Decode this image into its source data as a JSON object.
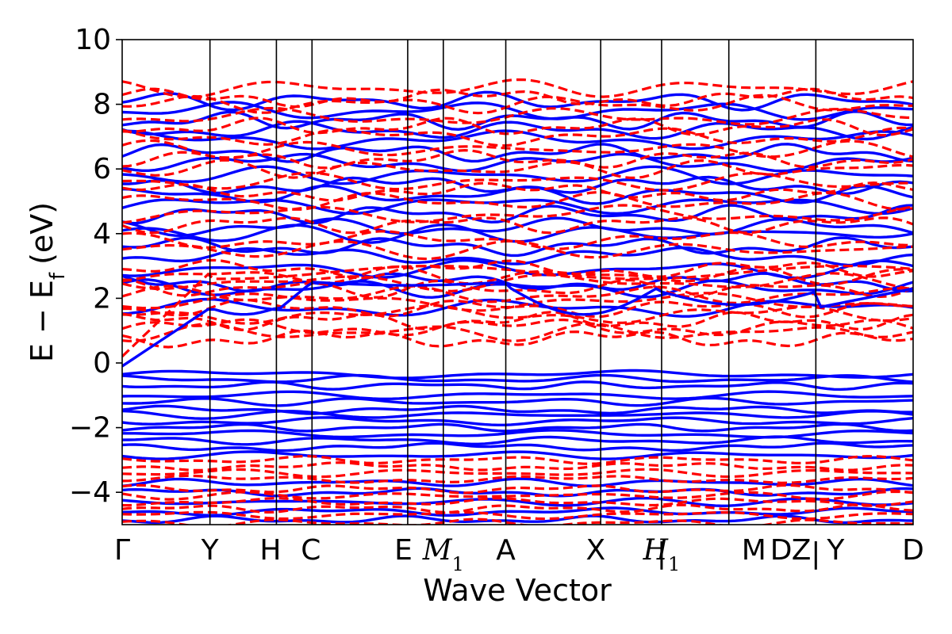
{
  "chart_data": {
    "type": "line",
    "title": "",
    "xlabel": "Wave Vector",
    "ylabel": "E − E",
    "ylabel_subscript": "f",
    "ylabel_unit": "(eV)",
    "ylim": [
      -5,
      10
    ],
    "yticks": [
      {
        "value": 10,
        "label": "10"
      },
      {
        "value": 8,
        "label": "8"
      },
      {
        "value": 6,
        "label": "6"
      },
      {
        "value": 4,
        "label": "4"
      },
      {
        "value": 2,
        "label": "2"
      },
      {
        "value": 0,
        "label": "0"
      },
      {
        "value": -2,
        "label": "−2"
      },
      {
        "value": -4,
        "label": "−4"
      }
    ],
    "xlim": [
      0,
      1
    ],
    "kpoints": [
      {
        "x": 0.0,
        "label": "Γ"
      },
      {
        "x": 0.111,
        "label": "Y"
      },
      {
        "x": 0.195,
        "label": "H"
      },
      {
        "x": 0.24,
        "label": "C"
      },
      {
        "x": 0.361,
        "label": "E"
      },
      {
        "x": 0.406,
        "label": "M",
        "sub": "1"
      },
      {
        "x": 0.485,
        "label": "A"
      },
      {
        "x": 0.605,
        "label": "X"
      },
      {
        "x": 0.682,
        "label": "H",
        "sub": "1"
      },
      {
        "x": 0.767,
        "label": "M"
      },
      {
        "x": 0.877,
        "label": "Z"
      },
      {
        "x": 1.0,
        "label": "D"
      }
    ],
    "segment_breaks": [
      {
        "x": 0.682,
        "label": "|"
      },
      {
        "x": 0.877,
        "label": "|"
      }
    ],
    "kpoint_extra_labels": [
      {
        "x": 0.767,
        "label": "D"
      },
      {
        "x": 0.877,
        "label": "Y"
      }
    ],
    "series": [
      {
        "style": "solid",
        "color": "#0000ff",
        "valence_levels": [
          -0.35,
          -0.5,
          -0.7,
          -1.0,
          -1.2,
          -1.45,
          -1.6,
          -1.8,
          -2.0,
          -2.2,
          -2.4,
          -2.6,
          -2.85,
          -3.7,
          -4.0,
          -4.3,
          -4.6,
          -4.85
        ],
        "conduction_levels": [
          1.7,
          2.3,
          2.5,
          2.9,
          3.3,
          3.6,
          4.0,
          4.2,
          4.6,
          4.9,
          5.2,
          5.5,
          5.8,
          6.2,
          6.5,
          6.9,
          7.2,
          7.5,
          7.8,
          8.1
        ]
      },
      {
        "style": "dashed",
        "color": "#ff0000",
        "valence_levels": [
          -3.0,
          -3.2,
          -3.4,
          -3.6,
          -3.9,
          -4.1,
          -4.3,
          -4.5,
          -4.7,
          -4.95
        ],
        "conduction_levels": [
          0.75,
          0.95,
          1.1,
          1.3,
          1.5,
          1.7,
          1.9,
          2.1,
          2.3,
          2.5,
          2.7,
          2.9,
          3.5,
          3.8,
          4.3,
          4.6,
          5.0,
          5.3,
          5.6,
          6.0,
          6.3,
          6.6,
          7.0,
          7.3,
          7.6,
          8.0,
          8.2,
          8.5
        ]
      }
    ],
    "grid": false,
    "legend": "none"
  }
}
